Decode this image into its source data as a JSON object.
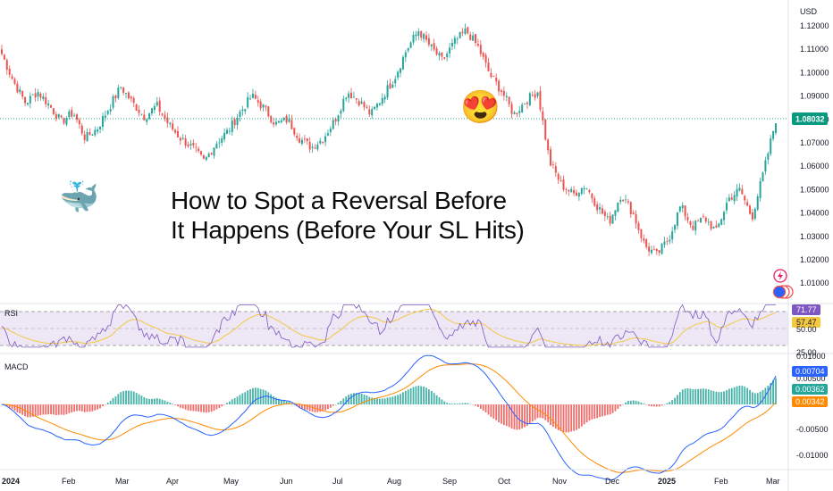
{
  "headline": {
    "line1": "How to Spot a Reversal Before",
    "line2": "It Happens (Before Your SL Hits)"
  },
  "emojis": {
    "whale": "🐳",
    "heart_eyes": "😍"
  },
  "price_panel": {
    "currency": "USD",
    "y_ticks": [
      "1.12000",
      "1.11000",
      "1.10000",
      "1.09000",
      "1.08000",
      "1.07000",
      "1.06000",
      "1.05000",
      "1.04000",
      "1.03000",
      "1.02000",
      "1.01000"
    ],
    "y_values": [
      1.12,
      1.11,
      1.1,
      1.09,
      1.08,
      1.07,
      1.06,
      1.05,
      1.04,
      1.03,
      1.02,
      1.01
    ],
    "last_price_label": "1.08032",
    "last_price": 1.08032
  },
  "rsi_panel": {
    "label": "RSI",
    "value_label": "71.77",
    "ma_label": "57.47",
    "ticks": [
      "50.00",
      "25.00"
    ],
    "upper_band": 70,
    "lower_band": 30
  },
  "macd_panel": {
    "label": "MACD",
    "ticks": [
      "0.01000",
      "0.00500",
      "-0.00500",
      "-0.01000"
    ],
    "macd_label": "0.00704",
    "signal_label": "0.00362",
    "hist_label": "0.00342"
  },
  "x_axis": {
    "labels": [
      "2024",
      "Feb",
      "Mar",
      "Apr",
      "May",
      "Jun",
      "Jul",
      "Aug",
      "Sep",
      "Oct",
      "Nov",
      "Dec",
      "2025",
      "Feb",
      "Mar"
    ]
  },
  "chart_data": {
    "type": "line",
    "series": [
      {
        "values": [
          1.108,
          1.096,
          1.087,
          1.092,
          1.086,
          1.079,
          1.083,
          1.072,
          1.076,
          1.085,
          1.094,
          1.087,
          1.081,
          1.086,
          1.078,
          1.072,
          1.068,
          1.062,
          1.07,
          1.075,
          1.083,
          1.09,
          1.085,
          1.078,
          1.08,
          1.072,
          1.068,
          1.072,
          1.08,
          1.092,
          1.088,
          1.082,
          1.09,
          1.098,
          1.11,
          1.118,
          1.111,
          1.105,
          1.113,
          1.118,
          1.111,
          1.099,
          1.092,
          1.082,
          1.088,
          1.092,
          1.062,
          1.052,
          1.048,
          1.052,
          1.043,
          1.036,
          1.048,
          1.04,
          1.026,
          1.022,
          1.029,
          1.043,
          1.034,
          1.038,
          1.032,
          1.046,
          1.05,
          1.038,
          1.058,
          1.08
        ]
      }
    ],
    "colors": {
      "up": "#26a69a",
      "down": "#ef5350",
      "rsi": "#7e57c2",
      "rsi_ma": "#f5c842",
      "macd": "#2962ff",
      "signal": "#ff8a00",
      "last_price": "#089981"
    }
  }
}
